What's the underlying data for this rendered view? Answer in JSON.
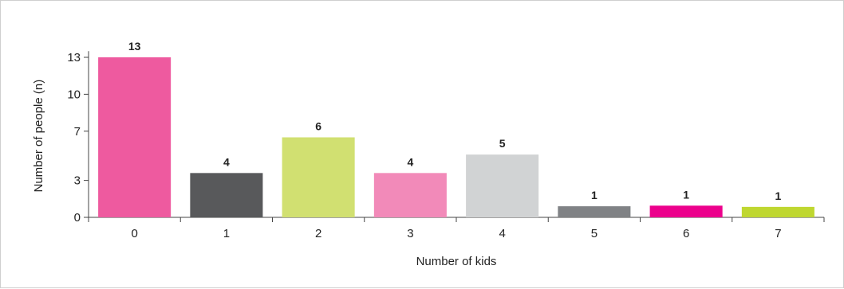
{
  "chart_data": {
    "type": "bar",
    "title": "",
    "xlabel": "Number of kids",
    "ylabel": "Number of people (n)",
    "categories": [
      "0",
      "1",
      "2",
      "3",
      "4",
      "5",
      "6",
      "7"
    ],
    "values": [
      13,
      4,
      6,
      4,
      5,
      1,
      1,
      1
    ],
    "bar_heights": [
      13,
      3.6,
      6.5,
      3.6,
      5.1,
      0.9,
      0.95,
      0.85
    ],
    "colors": [
      "#ee5a9f",
      "#58595b",
      "#d1e071",
      "#f28ab9",
      "#d1d3d4",
      "#808285",
      "#ec008c",
      "#bfd730"
    ],
    "ylim": [
      0,
      13.5
    ],
    "yticks": [
      0,
      3,
      7,
      10,
      13
    ],
    "grid": false,
    "legend": "none"
  }
}
